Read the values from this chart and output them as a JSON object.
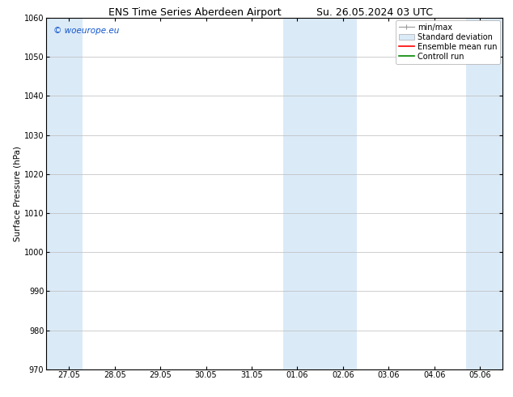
{
  "title_left": "ENS Time Series Aberdeen Airport",
  "title_right": "Su. 26.05.2024 03 UTC",
  "ylabel": "Surface Pressure (hPa)",
  "ylim": [
    970,
    1060
  ],
  "yticks": [
    970,
    980,
    990,
    1000,
    1010,
    1020,
    1030,
    1040,
    1050,
    1060
  ],
  "x_tick_labels": [
    "27.05",
    "28.05",
    "29.05",
    "30.05",
    "31.05",
    "01.06",
    "02.06",
    "03.06",
    "04.06",
    "05.06"
  ],
  "x_tick_positions": [
    0,
    1,
    2,
    3,
    4,
    5,
    6,
    7,
    8,
    9
  ],
  "xlim": [
    -0.5,
    9.5
  ],
  "shaded_bands": [
    {
      "x_start": -0.5,
      "x_end": 0.3,
      "color": "#dbeaf7"
    },
    {
      "x_start": 4.7,
      "x_end": 6.3,
      "color": "#dbeaf7"
    },
    {
      "x_start": 8.7,
      "x_end": 9.5,
      "color": "#dbeaf7"
    }
  ],
  "background_color": "#ffffff",
  "plot_bg_color": "#ffffff",
  "grid_color": "#bbbbbb",
  "watermark_text": "© woeurope.eu",
  "watermark_color": "#1155cc",
  "legend_items": [
    {
      "label": "min/max",
      "color": "#aaaaaa",
      "type": "errorbar"
    },
    {
      "label": "Standard deviation",
      "color": "#dbeaf7",
      "type": "box"
    },
    {
      "label": "Ensemble mean run",
      "color": "#ff0000",
      "type": "line"
    },
    {
      "label": "Controll run",
      "color": "#008800",
      "type": "line"
    }
  ],
  "title_fontsize": 9,
  "axis_label_fontsize": 7.5,
  "tick_fontsize": 7,
  "legend_fontsize": 7,
  "watermark_fontsize": 7.5
}
